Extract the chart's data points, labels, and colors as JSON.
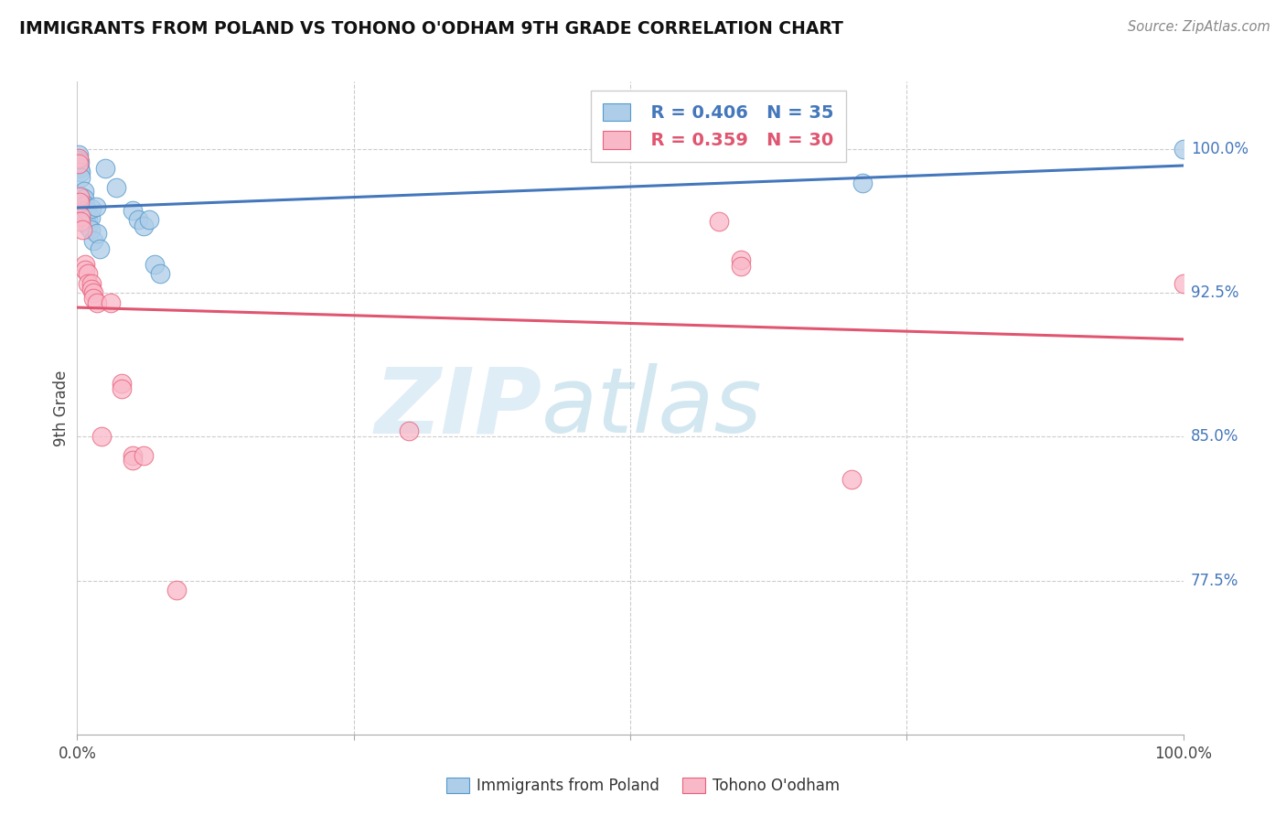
{
  "title": "IMMIGRANTS FROM POLAND VS TOHONO O'ODHAM 9TH GRADE CORRELATION CHART",
  "source": "Source: ZipAtlas.com",
  "ylabel": "9th Grade",
  "xlim": [
    0.0,
    1.0
  ],
  "ylim": [
    0.695,
    1.035
  ],
  "ytick_values": [
    0.775,
    0.85,
    0.925,
    1.0
  ],
  "ytick_labels": [
    "77.5%",
    "85.0%",
    "92.5%",
    "100.0%"
  ],
  "legend_r_blue": "R = 0.406",
  "legend_n_blue": "N = 35",
  "legend_r_pink": "R = 0.359",
  "legend_n_pink": "N = 30",
  "blue_fill": "#aecde8",
  "pink_fill": "#f9b8c8",
  "blue_edge": "#5599cc",
  "pink_edge": "#e8607a",
  "blue_line": "#4477bb",
  "pink_line": "#e05570",
  "blue_scatter": [
    [
      0.001,
      0.997
    ],
    [
      0.001,
      0.994
    ],
    [
      0.002,
      0.99
    ],
    [
      0.002,
      0.993
    ],
    [
      0.003,
      0.988
    ],
    [
      0.003,
      0.985
    ],
    [
      0.004,
      0.975
    ],
    [
      0.004,
      0.972
    ],
    [
      0.005,
      0.97
    ],
    [
      0.005,
      0.968
    ],
    [
      0.006,
      0.978
    ],
    [
      0.006,
      0.974
    ],
    [
      0.007,
      0.971
    ],
    [
      0.007,
      0.968
    ],
    [
      0.008,
      0.965
    ],
    [
      0.009,
      0.968
    ],
    [
      0.01,
      0.963
    ],
    [
      0.01,
      0.96
    ],
    [
      0.012,
      0.964
    ],
    [
      0.012,
      0.958
    ],
    [
      0.013,
      0.969
    ],
    [
      0.015,
      0.952
    ],
    [
      0.017,
      0.97
    ],
    [
      0.018,
      0.956
    ],
    [
      0.02,
      0.948
    ],
    [
      0.025,
      0.99
    ],
    [
      0.035,
      0.98
    ],
    [
      0.05,
      0.968
    ],
    [
      0.055,
      0.963
    ],
    [
      0.06,
      0.96
    ],
    [
      0.065,
      0.963
    ],
    [
      0.07,
      0.94
    ],
    [
      0.075,
      0.935
    ],
    [
      0.71,
      0.982
    ],
    [
      1.0,
      1.0
    ]
  ],
  "pink_scatter": [
    [
      0.001,
      0.995
    ],
    [
      0.001,
      0.992
    ],
    [
      0.002,
      0.975
    ],
    [
      0.002,
      0.972
    ],
    [
      0.003,
      0.965
    ],
    [
      0.003,
      0.962
    ],
    [
      0.005,
      0.958
    ],
    [
      0.007,
      0.94
    ],
    [
      0.007,
      0.937
    ],
    [
      0.01,
      0.935
    ],
    [
      0.01,
      0.93
    ],
    [
      0.013,
      0.93
    ],
    [
      0.013,
      0.927
    ],
    [
      0.015,
      0.925
    ],
    [
      0.015,
      0.922
    ],
    [
      0.018,
      0.92
    ],
    [
      0.022,
      0.85
    ],
    [
      0.03,
      0.92
    ],
    [
      0.04,
      0.878
    ],
    [
      0.04,
      0.875
    ],
    [
      0.05,
      0.84
    ],
    [
      0.05,
      0.838
    ],
    [
      0.06,
      0.84
    ],
    [
      0.09,
      0.77
    ],
    [
      0.3,
      0.853
    ],
    [
      0.58,
      0.962
    ],
    [
      0.6,
      0.942
    ],
    [
      0.6,
      0.939
    ],
    [
      0.7,
      0.828
    ],
    [
      1.0,
      0.93
    ]
  ],
  "watermark_zip": "ZIP",
  "watermark_atlas": "atlas",
  "background_color": "#ffffff",
  "grid_color": "#cccccc"
}
